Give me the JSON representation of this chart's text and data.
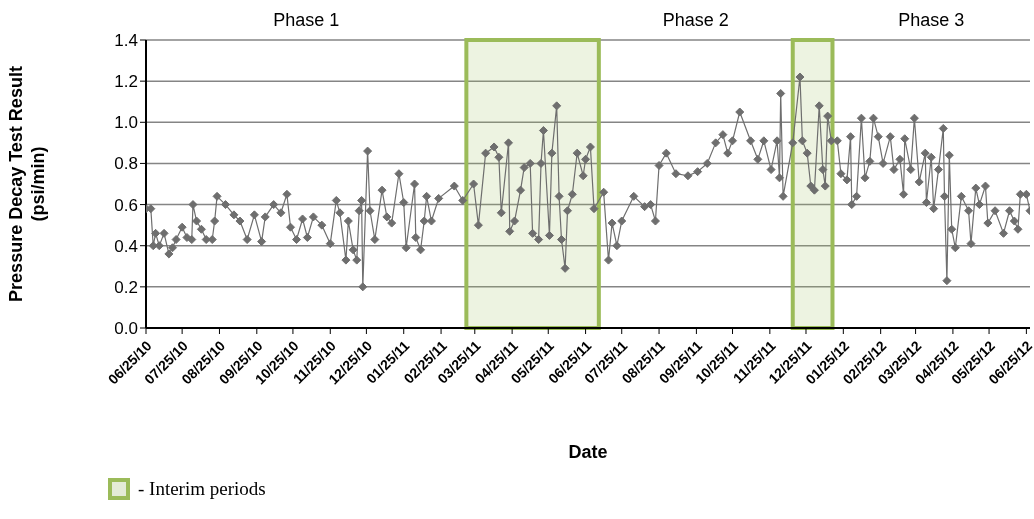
{
  "chart_data": {
    "type": "line",
    "xlabel": "Date",
    "ylabel": "Pressure Decay Test Result (psi/min)",
    "annotations": [
      "Phase 1",
      "Phase 2",
      "Phase 3",
      "- Interim periods"
    ],
    "xlim": [
      "2010-06-25",
      "2012-06-28"
    ],
    "xticks": [
      {
        "value": "2010-06-25",
        "label": "06/25/10"
      },
      {
        "value": "2010-07-25",
        "label": "07/25/10"
      },
      {
        "value": "2010-08-25",
        "label": "08/25/10"
      },
      {
        "value": "2010-09-25",
        "label": "09/25/10"
      },
      {
        "value": "2010-10-25",
        "label": "10/25/10"
      },
      {
        "value": "2010-11-25",
        "label": "11/25/10"
      },
      {
        "value": "2010-12-25",
        "label": "12/25/10"
      },
      {
        "value": "2011-01-25",
        "label": "01/25/11"
      },
      {
        "value": "2011-02-25",
        "label": "02/25/11"
      },
      {
        "value": "2011-03-25",
        "label": "03/25/11"
      },
      {
        "value": "2011-04-25",
        "label": "04/25/11"
      },
      {
        "value": "2011-05-25",
        "label": "05/25/11"
      },
      {
        "value": "2011-06-25",
        "label": "06/25/11"
      },
      {
        "value": "2011-07-25",
        "label": "07/25/11"
      },
      {
        "value": "2011-08-25",
        "label": "08/25/11"
      },
      {
        "value": "2011-09-25",
        "label": "09/25/11"
      },
      {
        "value": "2011-10-25",
        "label": "10/25/11"
      },
      {
        "value": "2011-11-25",
        "label": "11/25/11"
      },
      {
        "value": "2011-12-25",
        "label": "12/25/11"
      },
      {
        "value": "2012-01-25",
        "label": "01/25/12"
      },
      {
        "value": "2012-02-25",
        "label": "02/25/12"
      },
      {
        "value": "2012-03-25",
        "label": "03/25/12"
      },
      {
        "value": "2012-04-25",
        "label": "04/25/12"
      },
      {
        "value": "2012-05-25",
        "label": "05/25/12"
      },
      {
        "value": "2012-06-25",
        "label": "06/25/12"
      }
    ],
    "ylim": [
      0,
      1.4
    ],
    "yticks": [
      {
        "value": 0,
        "label": "0.0"
      },
      {
        "value": 0.2,
        "label": "0.2"
      },
      {
        "value": 0.4,
        "label": "0.4"
      },
      {
        "value": 0.6,
        "label": "0.6"
      },
      {
        "value": 0.8,
        "label": "0.8"
      },
      {
        "value": 1,
        "label": "1.0"
      },
      {
        "value": 1.2,
        "label": "1.2"
      },
      {
        "value": 1.4,
        "label": "1.4"
      }
    ],
    "grid": "y",
    "marker": "diamond",
    "line_style": "solid",
    "bands": [
      {
        "axis": "x",
        "from": "2011-03-18",
        "to": "2011-07-06",
        "color": "#9bbb59"
      },
      {
        "axis": "x",
        "from": "2011-12-14",
        "to": "2012-01-16",
        "color": "#9bbb59"
      }
    ],
    "series": [
      {
        "color": "#6e6e6e",
        "x": [
          "2010-06-25",
          "2010-06-29",
          "2010-07-01",
          "2010-07-03",
          "2010-07-06",
          "2010-07-10",
          "2010-07-14",
          "2010-07-17",
          "2010-07-20",
          "2010-07-25",
          "2010-07-29",
          "2010-08-02",
          "2010-08-03",
          "2010-08-06",
          "2010-08-10",
          "2010-08-14",
          "2010-08-19",
          "2010-08-21",
          "2010-08-23",
          "2010-08-30",
          "2010-09-06",
          "2010-09-11",
          "2010-09-17",
          "2010-09-23",
          "2010-09-29",
          "2010-10-02",
          "2010-10-09",
          "2010-10-15",
          "2010-10-20",
          "2010-10-23",
          "2010-10-28",
          "2010-11-02",
          "2010-11-06",
          "2010-11-11",
          "2010-11-18",
          "2010-11-25",
          "2010-11-30",
          "2010-12-03",
          "2010-12-08",
          "2010-12-10",
          "2010-12-14",
          "2010-12-17",
          "2010-12-19",
          "2010-12-21",
          "2010-12-22",
          "2010-12-26",
          "2010-12-28",
          "2011-01-01",
          "2011-01-07",
          "2011-01-11",
          "2011-01-15",
          "2011-01-21",
          "2011-01-25",
          "2011-01-27",
          "2011-02-03",
          "2011-02-04",
          "2011-02-08",
          "2011-02-11",
          "2011-02-13",
          "2011-02-17",
          "2011-02-23",
          "2011-03-08",
          "2011-03-15",
          "2011-03-24",
          "2011-03-28",
          "2011-04-03",
          "2011-04-10",
          "2011-04-14",
          "2011-04-16",
          "2011-04-22",
          "2011-04-23",
          "2011-04-27",
          "2011-05-02",
          "2011-05-05",
          "2011-05-10",
          "2011-05-12",
          "2011-05-17",
          "2011-05-19",
          "2011-05-21",
          "2011-05-26",
          "2011-05-28",
          "2011-06-01",
          "2011-06-03",
          "2011-06-05",
          "2011-06-08",
          "2011-06-10",
          "2011-06-14",
          "2011-06-18",
          "2011-06-23",
          "2011-06-25",
          "2011-06-29",
          "2011-07-02",
          "2011-07-10",
          "2011-07-14",
          "2011-07-17",
          "2011-07-21",
          "2011-07-25",
          "2011-08-04",
          "2011-08-13",
          "2011-08-18",
          "2011-08-22",
          "2011-08-25",
          "2011-08-31",
          "2011-09-08",
          "2011-09-18",
          "2011-09-26",
          "2011-10-04",
          "2011-10-11",
          "2011-10-17",
          "2011-10-21",
          "2011-10-25",
          "2011-10-31",
          "2011-11-09",
          "2011-11-15",
          "2011-11-20",
          "2011-11-26",
          "2011-12-01",
          "2011-12-03",
          "2011-12-04",
          "2011-12-06",
          "2011-12-14",
          "2011-12-20",
          "2011-12-22",
          "2011-12-26",
          "2011-12-29",
          "2012-01-01",
          "2012-01-05",
          "2012-01-08",
          "2012-01-10",
          "2012-01-12",
          "2012-01-15",
          "2012-01-20",
          "2012-01-23",
          "2012-01-28",
          "2012-01-31",
          "2012-02-01",
          "2012-02-05",
          "2012-02-09",
          "2012-02-12",
          "2012-02-16",
          "2012-02-19",
          "2012-02-23",
          "2012-02-27",
          "2012-03-04",
          "2012-03-07",
          "2012-03-12",
          "2012-03-15",
          "2012-03-16",
          "2012-03-21",
          "2012-03-24",
          "2012-03-28",
          "2012-04-02",
          "2012-04-03",
          "2012-04-07",
          "2012-04-09",
          "2012-04-13",
          "2012-04-17",
          "2012-04-18",
          "2012-04-20",
          "2012-04-22",
          "2012-04-24",
          "2012-04-27",
          "2012-05-02",
          "2012-05-08",
          "2012-05-10",
          "2012-05-14",
          "2012-05-17",
          "2012-05-22",
          "2012-05-24",
          "2012-05-30",
          "2012-06-06",
          "2012-06-11",
          "2012-06-15",
          "2012-06-18",
          "2012-06-20",
          "2012-06-25",
          "2012-06-28"
        ],
        "values": [
          0.58,
          0.58,
          0.4,
          0.46,
          0.4,
          0.46,
          0.36,
          0.39,
          0.43,
          0.49,
          0.44,
          0.43,
          0.6,
          0.52,
          0.48,
          0.43,
          0.43,
          0.52,
          0.64,
          0.6,
          0.55,
          0.52,
          0.43,
          0.55,
          0.42,
          0.54,
          0.6,
          0.56,
          0.65,
          0.49,
          0.43,
          0.53,
          0.44,
          0.54,
          0.5,
          0.41,
          0.62,
          0.56,
          0.33,
          0.52,
          0.38,
          0.33,
          0.57,
          0.62,
          0.2,
          0.86,
          0.57,
          0.43,
          0.67,
          0.54,
          0.51,
          0.75,
          0.61,
          0.39,
          0.7,
          0.44,
          0.38,
          0.52,
          0.64,
          0.52,
          0.63,
          0.69,
          0.62,
          0.7,
          0.5,
          0.85,
          0.88,
          0.83,
          0.56,
          0.9,
          0.47,
          0.52,
          0.67,
          0.78,
          0.8,
          0.46,
          0.43,
          0.8,
          0.96,
          0.45,
          0.85,
          1.08,
          0.64,
          0.43,
          0.29,
          0.57,
          0.65,
          0.85,
          0.74,
          0.82,
          0.88,
          0.58,
          0.66,
          0.33,
          0.51,
          0.4,
          0.52,
          0.64,
          0.59,
          0.6,
          0.52,
          0.79,
          0.85,
          0.75,
          0.74,
          0.76,
          0.8,
          0.9,
          0.94,
          0.85,
          0.91,
          1.05,
          0.91,
          0.82,
          0.91,
          0.77,
          0.91,
          0.73,
          1.14,
          0.64,
          0.9,
          1.22,
          0.91,
          0.85,
          0.69,
          0.67,
          1.08,
          0.77,
          0.69,
          1.03,
          0.91,
          0.91,
          0.75,
          0.72,
          0.93,
          0.6,
          0.64,
          1.02,
          0.73,
          0.81,
          1.02,
          0.93,
          0.8,
          0.93,
          0.77,
          0.82,
          0.65,
          0.92,
          0.77,
          1.02,
          0.71,
          0.85,
          0.61,
          0.83,
          0.58,
          0.77,
          0.97,
          0.64,
          0.23,
          0.84,
          0.48,
          0.39,
          0.64,
          0.57,
          0.41,
          0.68,
          0.6,
          0.69,
          0.51,
          0.57,
          0.46,
          0.57,
          0.52,
          0.48,
          0.65,
          0.65,
          0.57
        ]
      }
    ]
  }
}
